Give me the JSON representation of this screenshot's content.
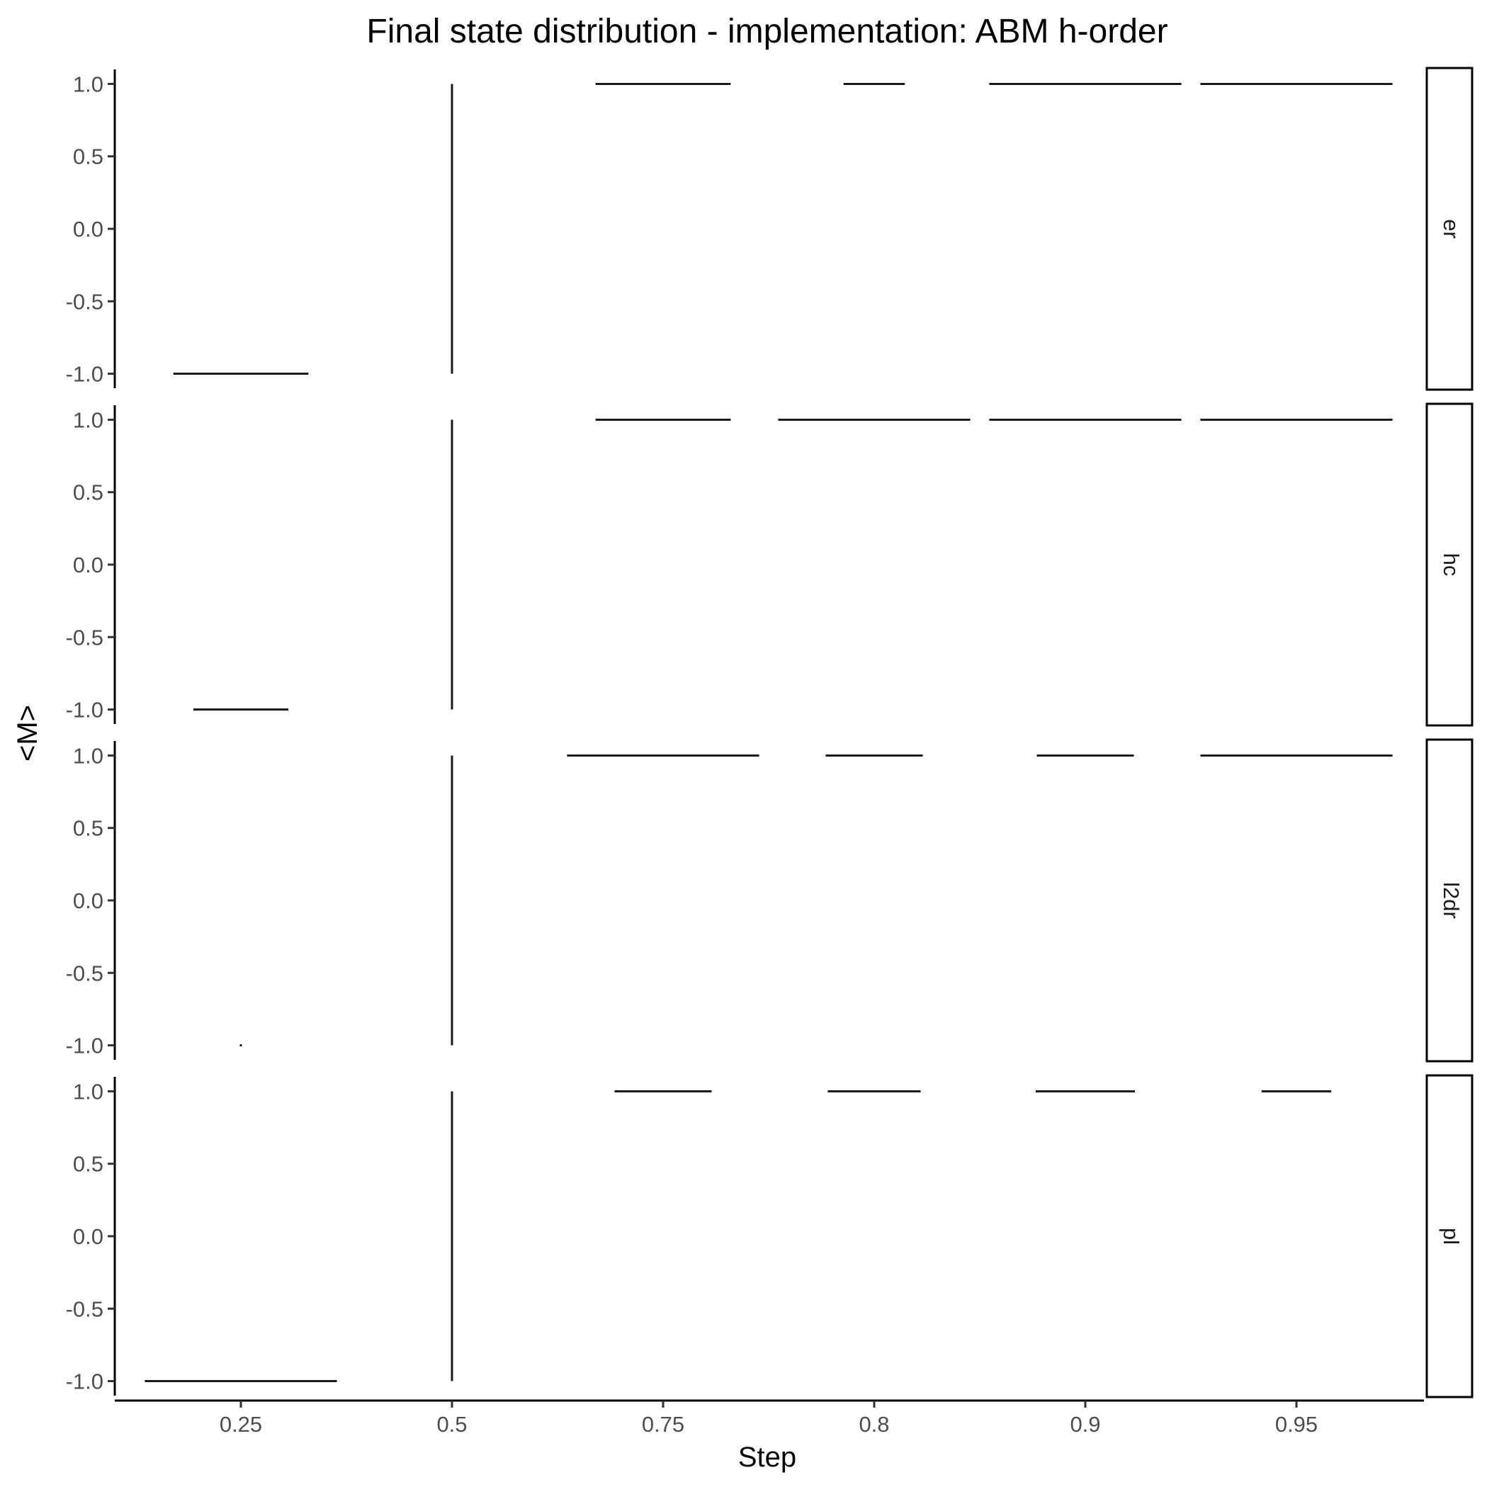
{
  "chart_data": {
    "type": "violin",
    "title": "Final state distribution - implementation: ABM h-order",
    "xlabel": "Step",
    "ylabel": "<M>",
    "categories": [
      "0.25",
      "0.5",
      "0.75",
      "0.8",
      "0.9",
      "0.95"
    ],
    "ylim": [
      -1.1,
      1.1
    ],
    "yticks": [
      1.0,
      0.5,
      0.0,
      -0.5,
      -1.0
    ],
    "ytick_labels": [
      "1.0",
      "0.5",
      "0.0",
      "-0.5",
      "-1.0"
    ],
    "grid": false,
    "legend": "none",
    "panels": [
      {
        "facet": "er",
        "marks": [
          {
            "category": "0.25",
            "y": -1.0,
            "width": 0.64
          },
          {
            "category": "0.5",
            "y": [
              -1.0,
              1.0
            ]
          },
          {
            "category": "0.75",
            "y": 1.0,
            "width": 0.64
          },
          {
            "category": "0.8",
            "y": 1.0,
            "width": 0.29
          },
          {
            "category": "0.9",
            "y": 1.0,
            "width": 0.91
          },
          {
            "category": "0.95",
            "y": 1.0,
            "width": 0.91
          }
        ]
      },
      {
        "facet": "hc",
        "marks": [
          {
            "category": "0.25",
            "y": -1.0,
            "width": 0.45
          },
          {
            "category": "0.5",
            "y": [
              -1.0,
              1.0
            ]
          },
          {
            "category": "0.75",
            "y": 1.0,
            "width": 0.64
          },
          {
            "category": "0.8",
            "y": 1.0,
            "width": 0.91
          },
          {
            "category": "0.9",
            "y": 1.0,
            "width": 0.91
          },
          {
            "category": "0.95",
            "y": 1.0,
            "width": 0.91
          }
        ]
      },
      {
        "facet": "l2dr",
        "marks": [
          {
            "category": "0.25",
            "y": -1.0,
            "width": 0.0
          },
          {
            "category": "0.5",
            "y": [
              -1.0,
              1.0
            ]
          },
          {
            "category": "0.75",
            "y": 1.0,
            "width": 0.91
          },
          {
            "category": "0.8",
            "y": 1.0,
            "width": 0.46
          },
          {
            "category": "0.9",
            "y": 1.0,
            "width": 0.46
          },
          {
            "category": "0.95",
            "y": 1.0,
            "width": 0.91
          }
        ]
      },
      {
        "facet": "pl",
        "marks": [
          {
            "category": "0.25",
            "y": -1.0,
            "width": 0.91
          },
          {
            "category": "0.5",
            "y": [
              -1.0,
              1.0
            ]
          },
          {
            "category": "0.75",
            "y": 1.0,
            "width": 0.46
          },
          {
            "category": "0.8",
            "y": 1.0,
            "width": 0.44
          },
          {
            "category": "0.9",
            "y": 1.0,
            "width": 0.47
          },
          {
            "category": "0.95",
            "y": 1.0,
            "width": 0.33
          }
        ]
      }
    ]
  }
}
